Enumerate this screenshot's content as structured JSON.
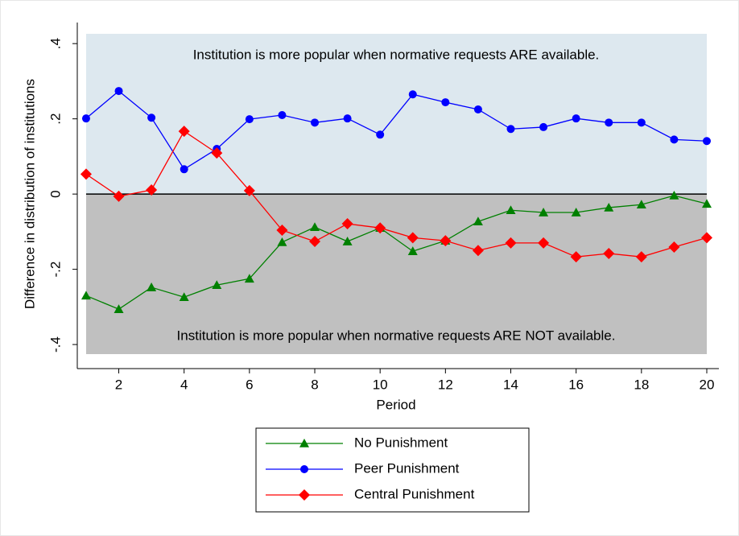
{
  "chart_data": {
    "type": "line",
    "y_label": "Difference in distribution of institutions",
    "x_label": "Period",
    "annotations": [
      "Institution is more popular when normative requests ARE available.",
      "Institution is more popular when normative requests ARE NOT available."
    ],
    "x": [
      1,
      2,
      3,
      4,
      5,
      6,
      7,
      8,
      9,
      10,
      11,
      12,
      13,
      14,
      15,
      16,
      17,
      18,
      19,
      20
    ],
    "xlim": [
      0.73,
      20.37
    ],
    "xticks": [
      2,
      4,
      6,
      8,
      10,
      12,
      14,
      16,
      18,
      20
    ],
    "ylim": [
      -0.464,
      0.456
    ],
    "yticks": [
      {
        "value": -0.4,
        "label": "-.4"
      },
      {
        "value": -0.2,
        "label": "-.2"
      },
      0,
      {
        "value": 0.2,
        "label": ".2"
      },
      {
        "value": 0.4,
        "label": ".4"
      }
    ],
    "series": [
      {
        "name": "No Punishment",
        "color": "#008000",
        "marker": "triangle",
        "values": [
          -0.27,
          -0.306,
          -0.248,
          -0.274,
          -0.242,
          -0.225,
          -0.128,
          -0.088,
          -0.126,
          -0.09,
          -0.152,
          -0.124,
          -0.073,
          -0.043,
          -0.049,
          -0.049,
          -0.036,
          -0.028,
          -0.004,
          -0.026
        ]
      },
      {
        "name": "Peer Punishment",
        "color": "#0000ff",
        "marker": "circle",
        "values": [
          0.201,
          0.274,
          0.203,
          0.066,
          0.12,
          0.199,
          0.21,
          0.19,
          0.201,
          0.158,
          0.265,
          0.244,
          0.225,
          0.173,
          0.178,
          0.201,
          0.19,
          0.19,
          0.145,
          0.141
        ]
      },
      {
        "name": "Central Punishment",
        "color": "#ff0000",
        "marker": "diamond",
        "values": [
          0.053,
          -0.006,
          0.011,
          0.167,
          0.109,
          0.009,
          -0.096,
          -0.126,
          -0.079,
          -0.09,
          -0.116,
          -0.124,
          -0.15,
          -0.13,
          -0.13,
          -0.167,
          -0.158,
          -0.167,
          -0.141,
          -0.116
        ]
      }
    ]
  }
}
